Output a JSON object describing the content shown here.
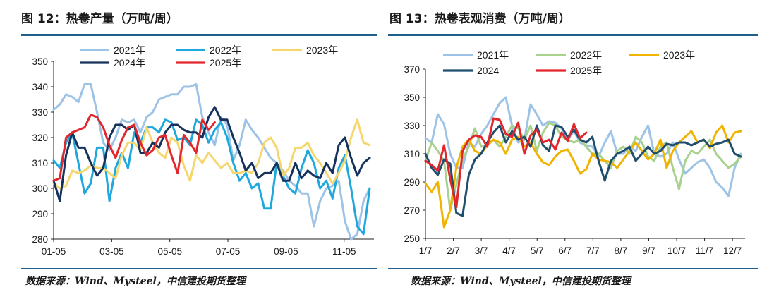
{
  "colors": {
    "y2021": "#9dc3e6",
    "y2022": "#1fa8dd",
    "y2022_consumption": "#a9d18e",
    "y2023": "#f5d76e",
    "y2023_consumption": "#f0b400",
    "y2024": "#16325c",
    "y2024_consumption": "#1f4e6e",
    "y2025": "#e3262b",
    "rule": "#1f5f8b"
  },
  "left": {
    "title": "图 12：热卷产量（万吨/周）",
    "source": "数据来源：Wind、Mysteel，中信建投期货整理"
  },
  "right": {
    "title": "图 13：热卷表观消费（万吨/周）",
    "source": "数据来源：Wind、Mysteel，中信建投期货整理"
  },
  "chart_data": [
    {
      "type": "line",
      "title": "图 12：热卷产量（万吨/周）",
      "x_ticks": [
        "01-05",
        "03-05",
        "05-05",
        "07-05",
        "09-05",
        "11-05"
      ],
      "ylim": [
        280,
        350
      ],
      "y_ticks": [
        280,
        290,
        300,
        310,
        320,
        330,
        340,
        350
      ],
      "weeks": 52,
      "legend_position": "top",
      "series": [
        {
          "name": "2021年",
          "color_key": "y2021",
          "values": [
            331,
            333,
            337,
            336,
            334,
            341,
            341,
            330,
            318,
            315,
            320,
            327,
            326,
            327,
            322,
            328,
            330,
            335,
            336,
            337,
            337,
            340,
            340,
            341,
            328,
            322,
            317,
            328,
            325,
            311,
            317,
            327,
            323,
            320,
            316,
            312,
            310,
            307,
            303,
            301,
            298,
            298,
            285,
            295,
            300,
            301,
            303,
            287,
            280,
            282,
            295,
            300
          ]
        },
        {
          "name": "2022年",
          "color_key": "y2022",
          "values": [
            311,
            308,
            318,
            322,
            310,
            298,
            302,
            316,
            316,
            295,
            308,
            314,
            308,
            322,
            318,
            324,
            324,
            322,
            327,
            326,
            319,
            320,
            317,
            327,
            325,
            318,
            323,
            326,
            320,
            310,
            303,
            306,
            300,
            302,
            292,
            292,
            310,
            305,
            300,
            298,
            308,
            315,
            310,
            300,
            303,
            296,
            308,
            313,
            300,
            285,
            282,
            300
          ]
        },
        {
          "name": "2023年",
          "color_key": "y2023",
          "values": [
            302,
            300,
            301,
            307,
            306,
            307,
            309,
            308,
            308,
            306,
            304,
            313,
            318,
            318,
            315,
            324,
            318,
            314,
            312,
            320,
            318,
            309,
            303,
            313,
            310,
            314,
            311,
            308,
            310,
            306,
            306,
            307,
            306,
            310,
            318,
            320,
            316,
            305,
            308,
            316,
            316,
            318,
            313,
            310,
            306,
            302,
            306,
            311,
            320,
            327,
            318,
            317
          ]
        },
        {
          "name": "2024年",
          "color_key": "y2024",
          "values": [
            303,
            295,
            313,
            322,
            316,
            316,
            310,
            305,
            308,
            320,
            325,
            325,
            323,
            325,
            314,
            314,
            318,
            316,
            322,
            325,
            325,
            323,
            322,
            322,
            320,
            328,
            332,
            327,
            327,
            320,
            314,
            307,
            310,
            304,
            306,
            306,
            310,
            303,
            303,
            310,
            304,
            307,
            305,
            304,
            310,
            306,
            317,
            320,
            312,
            305,
            310,
            312
          ]
        },
        {
          "name": "2025年",
          "color_key": "y2025",
          "values": [
            303,
            304,
            320,
            322,
            323,
            324,
            329,
            328,
            324,
            317,
            312,
            319,
            324,
            325,
            318,
            313,
            315,
            320,
            321,
            313,
            306,
            321,
            318,
            314,
            327,
            323,
            326
          ]
        }
      ]
    },
    {
      "type": "line",
      "title": "图 13：热卷表观消费（万吨/周）",
      "x_ticks": [
        "1/7",
        "2/7",
        "3/7",
        "4/7",
        "5/7",
        "6/7",
        "7/7",
        "8/7",
        "9/7",
        "10/7",
        "11/7",
        "12/7"
      ],
      "ylim": [
        250,
        370
      ],
      "y_ticks": [
        250,
        270,
        290,
        310,
        330,
        350,
        370
      ],
      "weeks": 52,
      "legend_position": "top",
      "series": [
        {
          "name": "2021年",
          "color_key": "y2021",
          "values": [
            321,
            318,
            338,
            331,
            310,
            300,
            300,
            318,
            315,
            324,
            330,
            338,
            346,
            350,
            330,
            318,
            320,
            345,
            338,
            330,
            333,
            332,
            328,
            320,
            326,
            318,
            316,
            315,
            308,
            318,
            326,
            310,
            310,
            315,
            312,
            322,
            330,
            310,
            308,
            310,
            318,
            306,
            296,
            300,
            304,
            306,
            300,
            290,
            286,
            280,
            300,
            310
          ]
        },
        {
          "name": "2022年",
          "color_key": "y2022_consumption",
          "values": [
            305,
            318,
            312,
            305,
            270,
            288,
            306,
            315,
            328,
            315,
            316,
            320,
            315,
            322,
            330,
            328,
            320,
            330,
            312,
            325,
            332,
            330,
            322,
            320,
            318,
            320,
            315,
            310,
            310,
            305,
            300,
            312,
            315,
            310,
            322,
            318,
            308,
            305,
            315,
            318,
            300,
            285,
            305,
            312,
            310,
            315,
            320,
            310,
            305,
            300,
            303,
            308
          ]
        },
        {
          "name": "2023年",
          "color_key": "y2023_consumption",
          "values": [
            289,
            283,
            290,
            258,
            270,
            300,
            315,
            320,
            312,
            310,
            316,
            320,
            318,
            310,
            320,
            322,
            315,
            318,
            310,
            304,
            302,
            308,
            312,
            313,
            305,
            296,
            299,
            310,
            306,
            305,
            304,
            300,
            306,
            312,
            318,
            312,
            306,
            310,
            320,
            300,
            312,
            318,
            322,
            326,
            318,
            320,
            314,
            325,
            330,
            318,
            325,
            326
          ]
        },
        {
          "name": "2024",
          "color_key": "y2024_consumption",
          "values": [
            310,
            300,
            295,
            306,
            303,
            268,
            266,
            295,
            306,
            310,
            318,
            325,
            330,
            318,
            326,
            320,
            322,
            315,
            330,
            316,
            312,
            330,
            329,
            322,
            327,
            320,
            318,
            322,
            305,
            291,
            305,
            310,
            312,
            315,
            305,
            310,
            315,
            310,
            312,
            317,
            316,
            318,
            318,
            316,
            318,
            320,
            315,
            317,
            318,
            320,
            310,
            308
          ]
        },
        {
          "name": "2025年",
          "color_key": "y2025",
          "values": [
            305,
            302,
            298,
            316,
            292,
            272,
            312,
            320,
            323,
            322,
            315,
            335,
            334,
            324,
            322,
            332,
            310,
            323,
            327,
            318,
            320,
            313,
            325,
            319,
            331,
            321,
            325
          ]
        }
      ]
    }
  ]
}
